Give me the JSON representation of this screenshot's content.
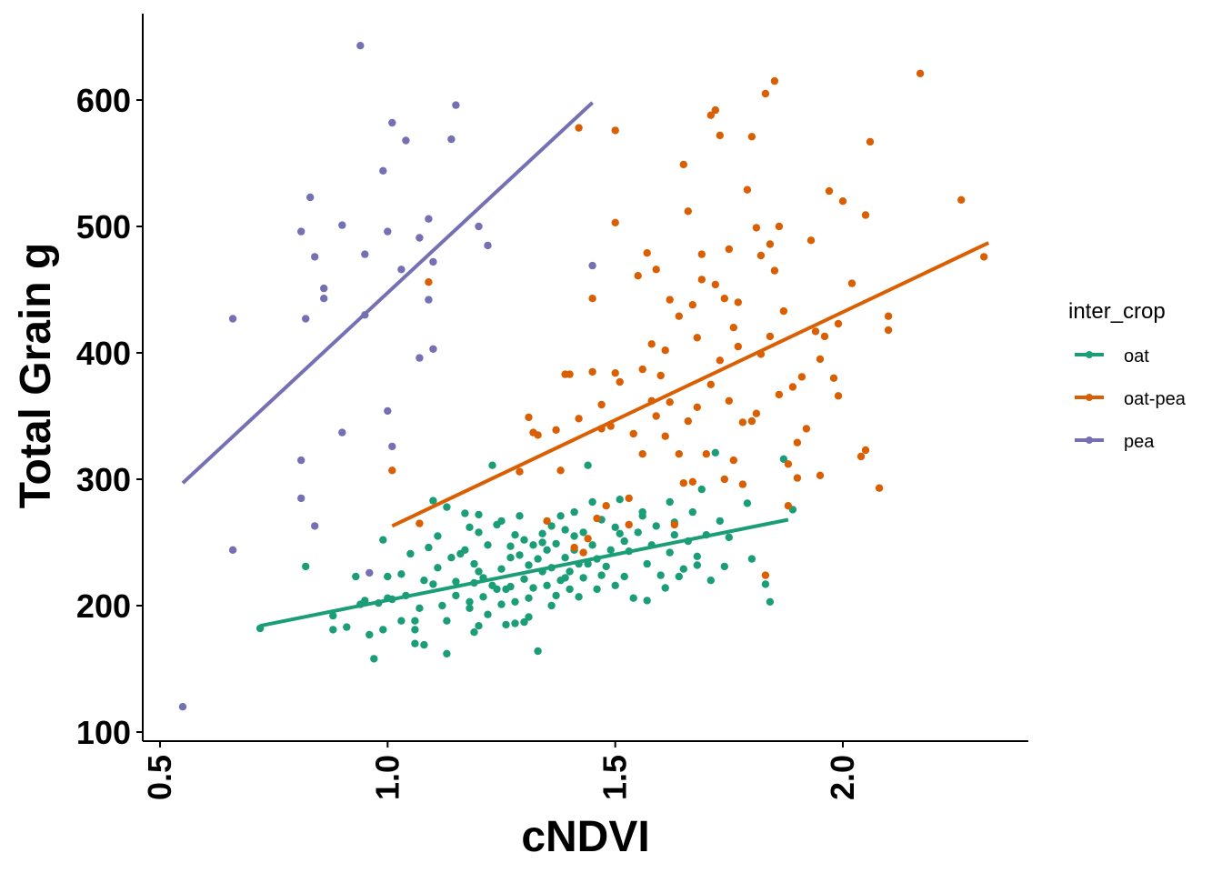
{
  "chart_data": {
    "type": "scatter",
    "title": "",
    "xlabel": "cNDVI",
    "ylabel": "Total Grain g",
    "xlim": [
      0.46,
      2.41
    ],
    "ylim": [
      96,
      667
    ],
    "x_ticks": [
      0.5,
      1.0,
      1.5,
      2.0
    ],
    "y_ticks": [
      100,
      200,
      300,
      400,
      500,
      600
    ],
    "x_tick_labels": [
      "0.5",
      "1.0",
      "1.5",
      "2.0"
    ],
    "y_tick_labels": [
      "100",
      "200",
      "300",
      "400",
      "500",
      "600"
    ],
    "grid": false,
    "legend": {
      "title": "inter_crop",
      "placement": "right"
    },
    "series": [
      {
        "name": "oat",
        "color": "#1b9e77",
        "trend": [
          [
            0.72,
            184
          ],
          [
            1.88,
            268
          ]
        ],
        "points": [
          [
            0.72,
            182
          ],
          [
            0.82,
            231
          ],
          [
            0.88,
            192
          ],
          [
            0.88,
            181
          ],
          [
            0.91,
            183
          ],
          [
            0.93,
            223
          ],
          [
            0.95,
            204
          ],
          [
            0.96,
            177
          ],
          [
            0.97,
            158
          ],
          [
            0.98,
            202
          ],
          [
            0.99,
            252
          ],
          [
            0.99,
            181
          ],
          [
            1.0,
            206
          ],
          [
            1.0,
            223
          ],
          [
            1.01,
            205
          ],
          [
            1.03,
            225
          ],
          [
            1.03,
            188
          ],
          [
            1.04,
            208
          ],
          [
            1.05,
            241
          ],
          [
            1.06,
            170
          ],
          [
            1.06,
            181
          ],
          [
            1.07,
            198
          ],
          [
            1.08,
            220
          ],
          [
            1.08,
            169
          ],
          [
            1.09,
            246
          ],
          [
            1.1,
            283
          ],
          [
            1.1,
            217
          ],
          [
            1.11,
            230
          ],
          [
            1.12,
            200
          ],
          [
            1.13,
            188
          ],
          [
            1.13,
            162
          ],
          [
            1.13,
            278
          ],
          [
            1.14,
            238
          ],
          [
            1.15,
            219
          ],
          [
            1.15,
            208
          ],
          [
            1.16,
            241
          ],
          [
            1.17,
            273
          ],
          [
            1.17,
            244
          ],
          [
            1.18,
            198
          ],
          [
            1.18,
            203
          ],
          [
            1.19,
            233
          ],
          [
            1.19,
            179
          ],
          [
            1.2,
            272
          ],
          [
            1.2,
            258
          ],
          [
            1.2,
            227
          ],
          [
            1.2,
            184
          ],
          [
            1.21,
            222
          ],
          [
            1.21,
            207
          ],
          [
            1.22,
            248
          ],
          [
            1.22,
            193
          ],
          [
            1.23,
            216
          ],
          [
            1.23,
            311
          ],
          [
            1.24,
            264
          ],
          [
            1.24,
            213
          ],
          [
            1.25,
            267
          ],
          [
            1.25,
            229
          ],
          [
            1.25,
            201
          ],
          [
            1.26,
            185
          ],
          [
            1.27,
            238
          ],
          [
            1.27,
            215
          ],
          [
            1.28,
            256
          ],
          [
            1.28,
            203
          ],
          [
            1.29,
            271
          ],
          [
            1.29,
            240
          ],
          [
            1.3,
            221
          ],
          [
            1.3,
            252
          ],
          [
            1.3,
            187
          ],
          [
            1.31,
            232
          ],
          [
            1.31,
            206
          ],
          [
            1.32,
            248
          ],
          [
            1.32,
            214
          ],
          [
            1.33,
            164
          ],
          [
            1.33,
            237
          ],
          [
            1.34,
            257
          ],
          [
            1.34,
            227
          ],
          [
            1.35,
            244
          ],
          [
            1.35,
            216
          ],
          [
            1.36,
            263
          ],
          [
            1.36,
            230
          ],
          [
            1.37,
            208
          ],
          [
            1.37,
            249
          ],
          [
            1.38,
            220
          ],
          [
            1.38,
            271
          ],
          [
            1.39,
            238
          ],
          [
            1.39,
            260
          ],
          [
            1.4,
            213
          ],
          [
            1.4,
            227
          ],
          [
            1.41,
            244
          ],
          [
            1.41,
            274
          ],
          [
            1.42,
            207
          ],
          [
            1.42,
            233
          ],
          [
            1.43,
            258
          ],
          [
            1.43,
            222
          ],
          [
            1.44,
            311
          ],
          [
            1.45,
            248
          ],
          [
            1.46,
            237
          ],
          [
            1.46,
            213
          ],
          [
            1.47,
            268
          ],
          [
            1.48,
            231
          ],
          [
            1.49,
            244
          ],
          [
            1.5,
            216
          ],
          [
            1.51,
            257
          ],
          [
            1.51,
            284
          ],
          [
            1.52,
            223
          ],
          [
            1.53,
            243
          ],
          [
            1.54,
            206
          ],
          [
            1.55,
            258
          ],
          [
            1.56,
            271
          ],
          [
            1.57,
            204
          ],
          [
            1.57,
            233
          ],
          [
            1.58,
            248
          ],
          [
            1.59,
            263
          ],
          [
            1.6,
            224
          ],
          [
            1.61,
            214
          ],
          [
            1.62,
            242
          ],
          [
            1.62,
            282
          ],
          [
            1.63,
            256
          ],
          [
            1.64,
            223
          ],
          [
            1.65,
            229
          ],
          [
            1.66,
            251
          ],
          [
            1.67,
            274
          ],
          [
            1.68,
            239
          ],
          [
            1.69,
            292
          ],
          [
            1.7,
            256
          ],
          [
            1.71,
            220
          ],
          [
            1.72,
            321
          ],
          [
            1.73,
            267
          ],
          [
            1.74,
            231
          ],
          [
            1.75,
            254
          ],
          [
            1.8,
            237
          ],
          [
            1.83,
            217
          ],
          [
            1.84,
            203
          ],
          [
            1.87,
            316
          ],
          [
            1.89,
            276
          ],
          [
            1.79,
            281
          ],
          [
            1.68,
            232
          ],
          [
            1.63,
            266
          ],
          [
            1.52,
            251
          ],
          [
            1.47,
            224
          ],
          [
            1.36,
            200
          ],
          [
            1.31,
            191
          ],
          [
            1.26,
            213
          ],
          [
            1.18,
            262
          ],
          [
            1.11,
            255
          ],
          [
            1.06,
            188
          ],
          [
            0.94,
            201
          ],
          [
            1.28,
            186
          ],
          [
            1.34,
            250
          ],
          [
            1.56,
            274
          ],
          [
            1.44,
            233
          ],
          [
            1.39,
            222
          ],
          [
            1.19,
            218
          ],
          [
            1.27,
            247
          ],
          [
            1.41,
            255
          ],
          [
            1.5,
            262
          ],
          [
            1.45,
            282
          ]
        ]
      },
      {
        "name": "oat-pea",
        "color": "#d95f02",
        "trend": [
          [
            1.01,
            263
          ],
          [
            2.32,
            487
          ]
        ],
        "points": [
          [
            1.01,
            307
          ],
          [
            1.07,
            265
          ],
          [
            1.09,
            456
          ],
          [
            1.29,
            306
          ],
          [
            1.31,
            349
          ],
          [
            1.32,
            337
          ],
          [
            1.33,
            335
          ],
          [
            1.35,
            267
          ],
          [
            1.37,
            339
          ],
          [
            1.38,
            307
          ],
          [
            1.39,
            383
          ],
          [
            1.4,
            383
          ],
          [
            1.41,
            246
          ],
          [
            1.42,
            348
          ],
          [
            1.42,
            578
          ],
          [
            1.44,
            253
          ],
          [
            1.45,
            443
          ],
          [
            1.45,
            385
          ],
          [
            1.46,
            269
          ],
          [
            1.47,
            359
          ],
          [
            1.48,
            279
          ],
          [
            1.49,
            342
          ],
          [
            1.5,
            384
          ],
          [
            1.5,
            503
          ],
          [
            1.5,
            576
          ],
          [
            1.51,
            377
          ],
          [
            1.53,
            264
          ],
          [
            1.54,
            336
          ],
          [
            1.55,
            461
          ],
          [
            1.56,
            320
          ],
          [
            1.57,
            479
          ],
          [
            1.58,
            407
          ],
          [
            1.59,
            466
          ],
          [
            1.59,
            350
          ],
          [
            1.6,
            382
          ],
          [
            1.61,
            334
          ],
          [
            1.62,
            442
          ],
          [
            1.63,
            264
          ],
          [
            1.64,
            320
          ],
          [
            1.65,
            297
          ],
          [
            1.65,
            549
          ],
          [
            1.66,
            512
          ],
          [
            1.67,
            438
          ],
          [
            1.68,
            357
          ],
          [
            1.69,
            458
          ],
          [
            1.7,
            320
          ],
          [
            1.71,
            588
          ],
          [
            1.72,
            592
          ],
          [
            1.72,
            454
          ],
          [
            1.73,
            572
          ],
          [
            1.74,
            300
          ],
          [
            1.75,
            482
          ],
          [
            1.75,
            362
          ],
          [
            1.76,
            420
          ],
          [
            1.77,
            440
          ],
          [
            1.78,
            296
          ],
          [
            1.79,
            529
          ],
          [
            1.8,
            571
          ],
          [
            1.8,
            346
          ],
          [
            1.81,
            499
          ],
          [
            1.81,
            352
          ],
          [
            1.82,
            477
          ],
          [
            1.83,
            605
          ],
          [
            1.83,
            224
          ],
          [
            1.84,
            486
          ],
          [
            1.85,
            615
          ],
          [
            1.85,
            465
          ],
          [
            1.86,
            500
          ],
          [
            1.87,
            433
          ],
          [
            1.88,
            312
          ],
          [
            1.89,
            373
          ],
          [
            1.9,
            301
          ],
          [
            1.91,
            381
          ],
          [
            1.92,
            340
          ],
          [
            1.93,
            489
          ],
          [
            1.95,
            395
          ],
          [
            1.96,
            413
          ],
          [
            1.97,
            528
          ],
          [
            1.98,
            380
          ],
          [
            1.99,
            423
          ],
          [
            2.0,
            520
          ],
          [
            2.02,
            455
          ],
          [
            2.04,
            318
          ],
          [
            2.05,
            509
          ],
          [
            2.06,
            567
          ],
          [
            2.08,
            293
          ],
          [
            2.1,
            429
          ],
          [
            2.1,
            418
          ],
          [
            2.17,
            621
          ],
          [
            2.26,
            521
          ],
          [
            2.31,
            476
          ],
          [
            1.61,
            402
          ],
          [
            1.56,
            387
          ],
          [
            1.68,
            412
          ],
          [
            1.73,
            394
          ],
          [
            1.77,
            405
          ],
          [
            1.86,
            367
          ],
          [
            1.95,
            303
          ],
          [
            1.82,
            399
          ],
          [
            1.71,
            375
          ],
          [
            1.66,
            346
          ],
          [
            1.58,
            362
          ],
          [
            1.53,
            285
          ],
          [
            1.47,
            340
          ],
          [
            1.64,
            429
          ],
          [
            1.69,
            478
          ],
          [
            1.74,
            443
          ],
          [
            1.78,
            345
          ],
          [
            1.84,
            413
          ],
          [
            1.9,
            329
          ],
          [
            1.94,
            417
          ],
          [
            1.99,
            366
          ],
          [
            2.05,
            323
          ],
          [
            1.62,
            361
          ],
          [
            1.67,
            298
          ],
          [
            1.76,
            315
          ],
          [
            1.88,
            279
          ],
          [
            1.43,
            242
          ]
        ]
      },
      {
        "name": "pea",
        "color": "#7570b3",
        "trend": [
          [
            0.55,
            297
          ],
          [
            1.45,
            598
          ]
        ],
        "points": [
          [
            0.55,
            120
          ],
          [
            0.66,
            427
          ],
          [
            0.66,
            244
          ],
          [
            0.81,
            496
          ],
          [
            0.81,
            315
          ],
          [
            0.81,
            285
          ],
          [
            0.82,
            427
          ],
          [
            0.83,
            523
          ],
          [
            0.84,
            476
          ],
          [
            0.84,
            263
          ],
          [
            0.86,
            443
          ],
          [
            0.86,
            451
          ],
          [
            0.9,
            501
          ],
          [
            0.9,
            337
          ],
          [
            0.94,
            643
          ],
          [
            0.95,
            478
          ],
          [
            0.95,
            430
          ],
          [
            0.96,
            226
          ],
          [
            0.99,
            544
          ],
          [
            1.0,
            496
          ],
          [
            1.0,
            354
          ],
          [
            1.01,
            582
          ],
          [
            1.01,
            326
          ],
          [
            1.03,
            466
          ],
          [
            1.04,
            568
          ],
          [
            1.07,
            491
          ],
          [
            1.07,
            396
          ],
          [
            1.09,
            506
          ],
          [
            1.09,
            442
          ],
          [
            1.1,
            472
          ],
          [
            1.1,
            403
          ],
          [
            1.14,
            569
          ],
          [
            1.15,
            596
          ],
          [
            1.2,
            500
          ],
          [
            1.22,
            485
          ],
          [
            1.45,
            469
          ]
        ]
      }
    ]
  }
}
